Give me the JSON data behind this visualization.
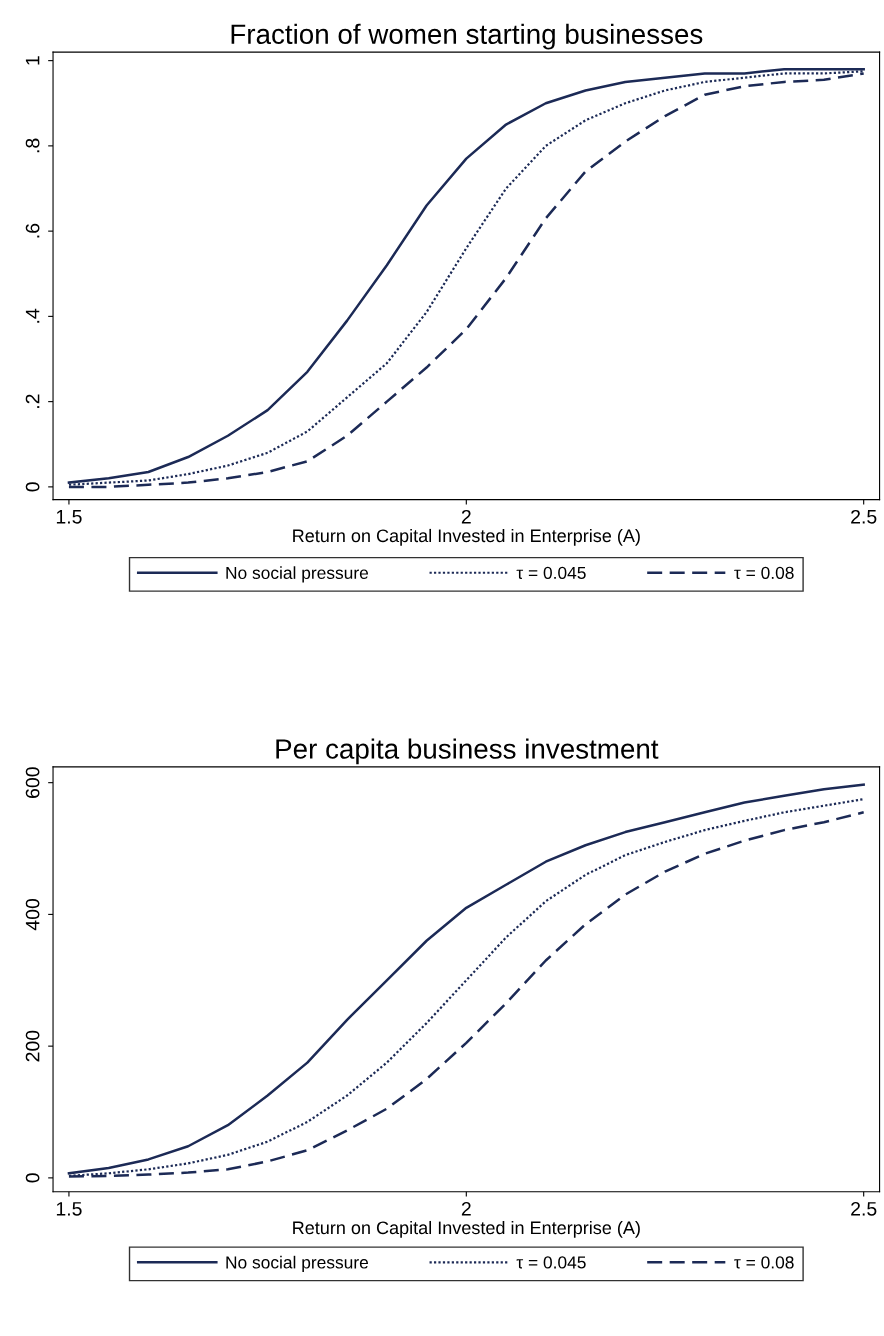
{
  "chart_data": [
    {
      "type": "line",
      "title": "Fraction of women starting businesses",
      "xlabel": "Return on Capital Invested in Enterprise (A)",
      "x": [
        1.5,
        1.55,
        1.6,
        1.65,
        1.7,
        1.75,
        1.8,
        1.85,
        1.9,
        1.95,
        2.0,
        2.05,
        2.1,
        2.15,
        2.2,
        2.25,
        2.3,
        2.35,
        2.4,
        2.45,
        2.5
      ],
      "series": [
        {
          "name": "No social pressure",
          "color": "#1c2a56",
          "line_style": "solid",
          "values": [
            0.01,
            0.02,
            0.035,
            0.07,
            0.12,
            0.18,
            0.27,
            0.39,
            0.52,
            0.66,
            0.77,
            0.85,
            0.9,
            0.93,
            0.95,
            0.96,
            0.97,
            0.97,
            0.98,
            0.98,
            0.98
          ]
        },
        {
          "name": "τ = 0.045",
          "color": "#1c2a56",
          "line_style": "dotted",
          "values": [
            0.005,
            0.01,
            0.015,
            0.03,
            0.05,
            0.08,
            0.13,
            0.21,
            0.29,
            0.41,
            0.56,
            0.7,
            0.8,
            0.86,
            0.9,
            0.93,
            0.95,
            0.96,
            0.97,
            0.97,
            0.975
          ]
        },
        {
          "name": "τ = 0.08",
          "color": "#1c2a56",
          "line_style": "dashed",
          "values": [
            0,
            0,
            0.005,
            0.01,
            0.02,
            0.035,
            0.06,
            0.12,
            0.2,
            0.28,
            0.37,
            0.49,
            0.63,
            0.74,
            0.81,
            0.87,
            0.92,
            0.94,
            0.95,
            0.955,
            0.97
          ]
        }
      ],
      "xlim": [
        1.48,
        2.52
      ],
      "ylim": [
        -0.03,
        1.02
      ],
      "xticks": [
        1.5,
        2,
        2.5
      ],
      "yticks": [
        0,
        {
          "value": 0.2,
          "label": ".2"
        },
        {
          "value": 0.4,
          "label": ".4"
        },
        {
          "value": 0.6,
          "label": ".6"
        },
        {
          "value": 0.8,
          "label": ".8"
        },
        1
      ],
      "legend": "bottom",
      "grid": false
    },
    {
      "type": "line",
      "title": "Per capita business investment",
      "xlabel": "Return on Capital Invested in Enterprise (A)",
      "x": [
        1.5,
        1.55,
        1.6,
        1.65,
        1.7,
        1.75,
        1.8,
        1.85,
        1.9,
        1.95,
        2.0,
        2.05,
        2.1,
        2.15,
        2.2,
        2.25,
        2.3,
        2.35,
        2.4,
        2.45,
        2.5
      ],
      "series": [
        {
          "name": "No social pressure",
          "color": "#1c2a56",
          "line_style": "solid",
          "values": [
            7,
            15,
            28,
            48,
            80,
            125,
            175,
            240,
            300,
            360,
            410,
            445,
            480,
            505,
            525,
            540,
            555,
            570,
            580,
            590,
            597
          ]
        },
        {
          "name": "τ = 0.045",
          "color": "#1c2a56",
          "line_style": "dotted",
          "values": [
            3,
            7,
            13,
            22,
            35,
            55,
            85,
            125,
            175,
            235,
            300,
            365,
            420,
            460,
            490,
            510,
            528,
            542,
            555,
            565,
            575
          ]
        },
        {
          "name": "τ = 0.08",
          "color": "#1c2a56",
          "line_style": "dashed",
          "values": [
            2,
            3,
            5,
            8,
            13,
            25,
            42,
            72,
            105,
            150,
            205,
            265,
            330,
            385,
            430,
            465,
            492,
            512,
            528,
            540,
            555
          ]
        }
      ],
      "xlim": [
        1.48,
        2.52
      ],
      "ylim": [
        -21,
        624
      ],
      "xticks": [
        1.5,
        2,
        2.5
      ],
      "yticks": [
        0,
        200,
        400,
        600
      ],
      "legend": "bottom",
      "grid": false
    }
  ]
}
